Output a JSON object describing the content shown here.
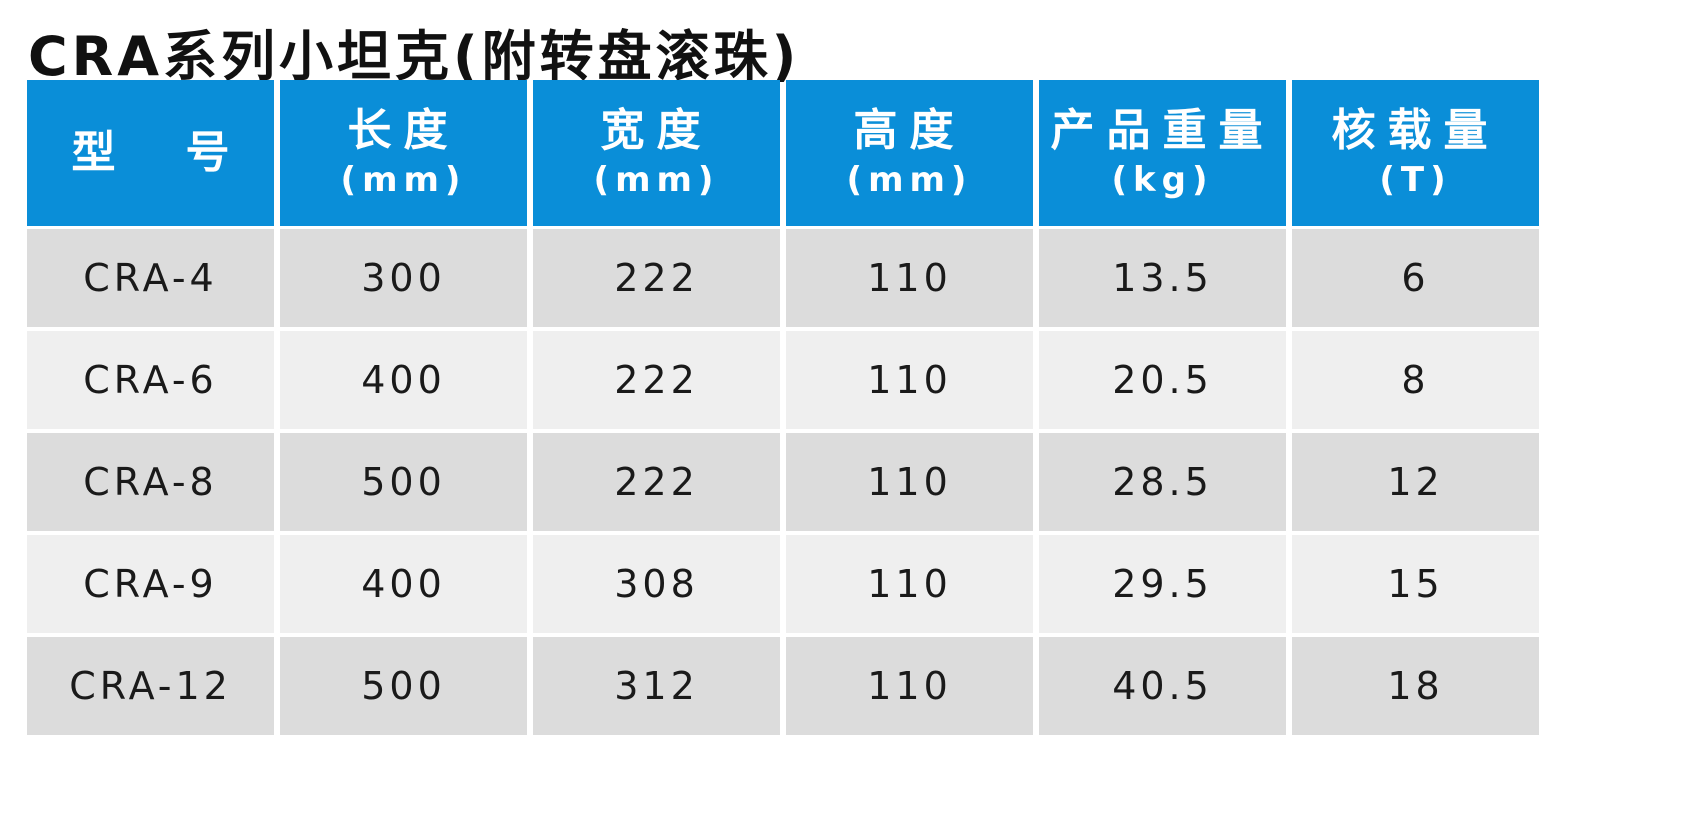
{
  "header": {
    "title": "CRA系列小坦克(附转盘滚珠)"
  },
  "table": {
    "columns": [
      {
        "label": "型号"
      },
      {
        "label": "长度",
        "unit": "(mm)"
      },
      {
        "label": "宽度",
        "unit": "(mm)"
      },
      {
        "label": "高度",
        "unit": "(mm)"
      },
      {
        "label": "产品重量",
        "unit": "(kg)"
      },
      {
        "label": "核载量",
        "unit": "(T)"
      }
    ],
    "rows": [
      [
        "CRA-4",
        "300",
        "222",
        "110",
        "13.5",
        "6"
      ],
      [
        "CRA-6",
        "400",
        "222",
        "110",
        "20.5",
        "8"
      ],
      [
        "CRA-8",
        "500",
        "222",
        "110",
        "28.5",
        "12"
      ],
      [
        "CRA-9",
        "400",
        "308",
        "110",
        "29.5",
        "15"
      ],
      [
        "CRA-12",
        "500",
        "312",
        "110",
        "40.5",
        "18"
      ]
    ]
  }
}
